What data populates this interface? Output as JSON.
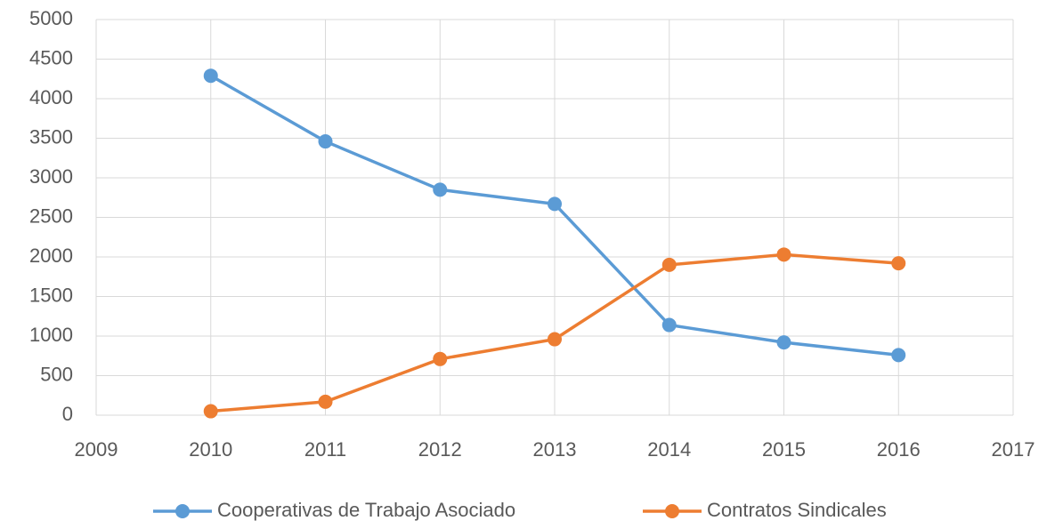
{
  "chart_data": {
    "type": "line",
    "x": [
      2010,
      2011,
      2012,
      2013,
      2014,
      2015,
      2016
    ],
    "series": [
      {
        "name": "Cooperativas de Trabajo Asociado",
        "color": "#5b9bd5",
        "values": [
          4290,
          3460,
          2850,
          2670,
          1140,
          920,
          760
        ]
      },
      {
        "name": "Contratos Sindicales",
        "color": "#ed7d31",
        "values": [
          50,
          170,
          710,
          960,
          1900,
          2030,
          1920
        ]
      }
    ],
    "xlim": [
      2009,
      2017
    ],
    "xticks": [
      2009,
      2010,
      2011,
      2012,
      2013,
      2014,
      2015,
      2016,
      2017
    ],
    "ylim": [
      0,
      5000
    ],
    "yticks": [
      0,
      500,
      1000,
      1500,
      2000,
      2500,
      3000,
      3500,
      4000,
      4500,
      5000
    ],
    "grid": true,
    "legend": "bottom"
  }
}
